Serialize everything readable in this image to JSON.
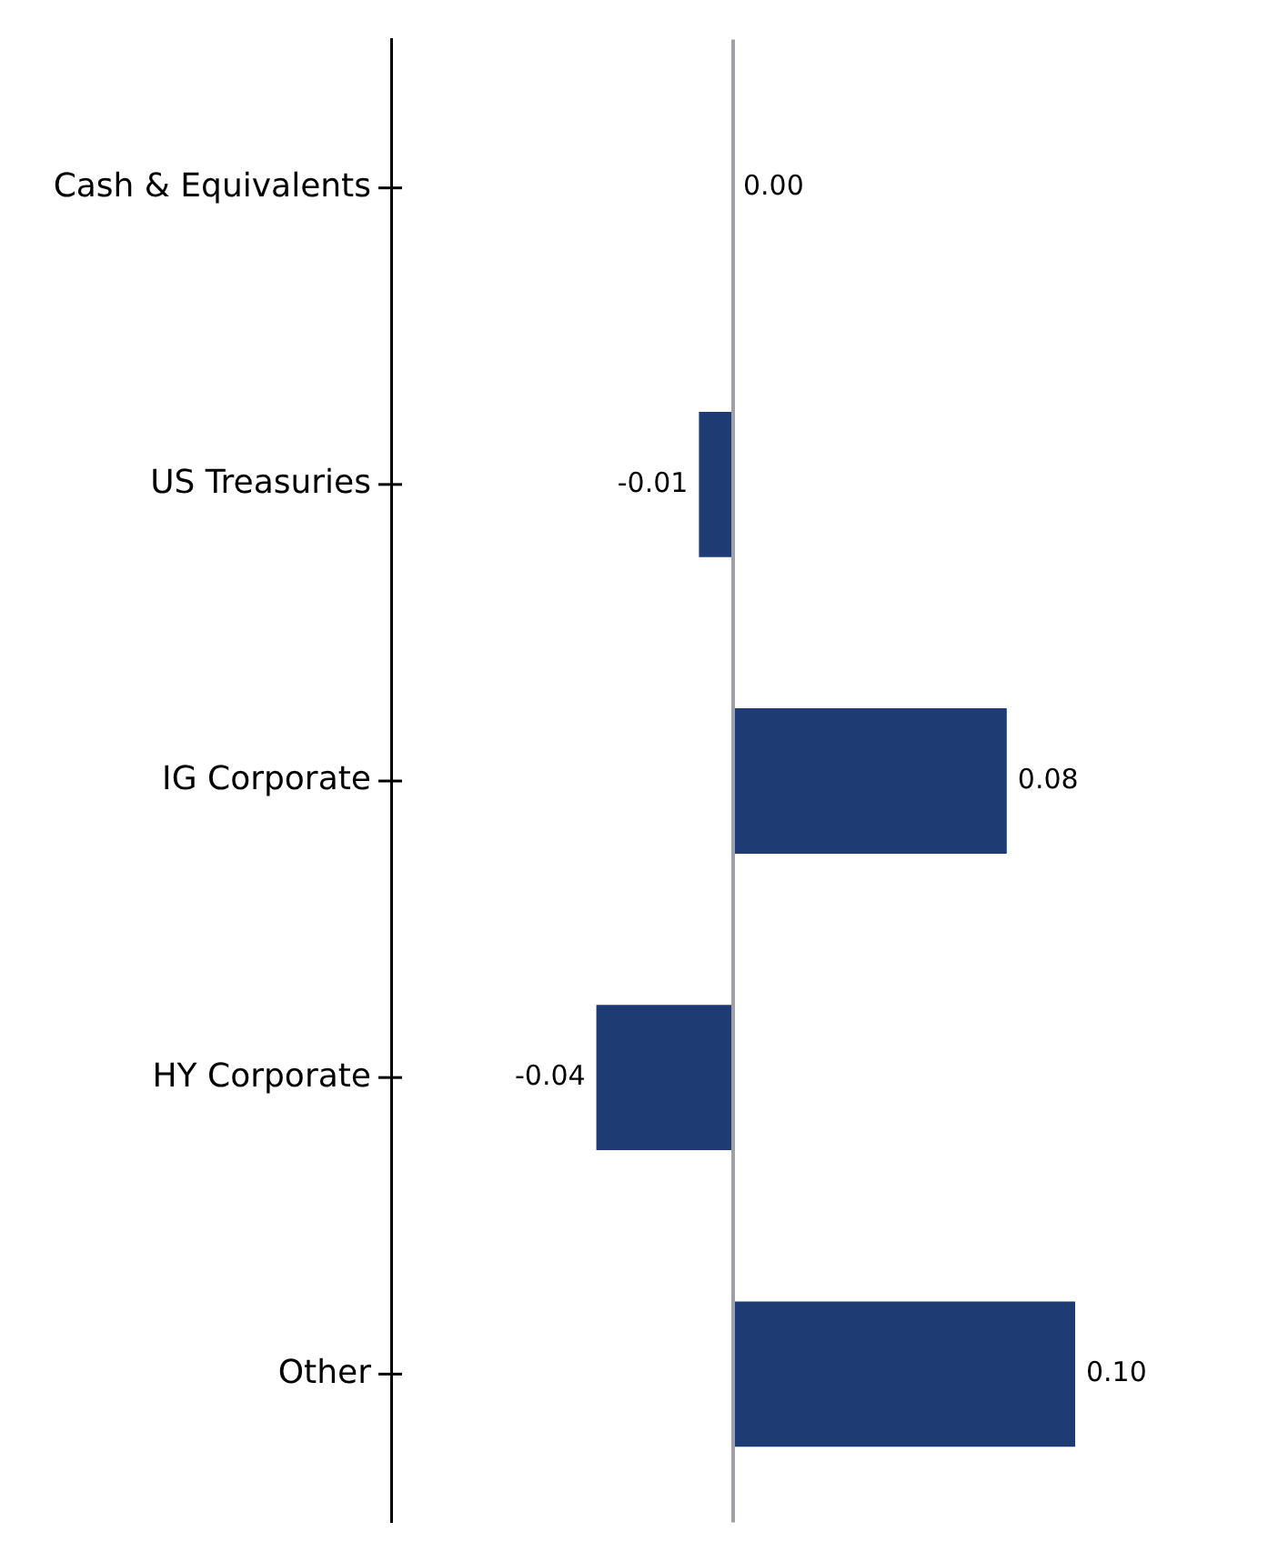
{
  "chart_data": {
    "type": "bar",
    "orientation": "horizontal",
    "categories": [
      "Cash & Equivalents",
      "US Treasuries",
      "IG Corporate",
      "HY Corporate",
      "Other"
    ],
    "values": [
      0.0,
      -0.01,
      0.08,
      -0.04,
      0.1
    ],
    "color": "#1f3b73",
    "value_labels": [
      "0.00",
      "-0.01",
      "0.08",
      "-0.04",
      "0.10"
    ],
    "tick_labels": "y",
    "grid": false,
    "legend": false,
    "ref_lines": [
      {
        "axis": "x",
        "value": 0,
        "color": "#a0a0a8"
      }
    ]
  }
}
